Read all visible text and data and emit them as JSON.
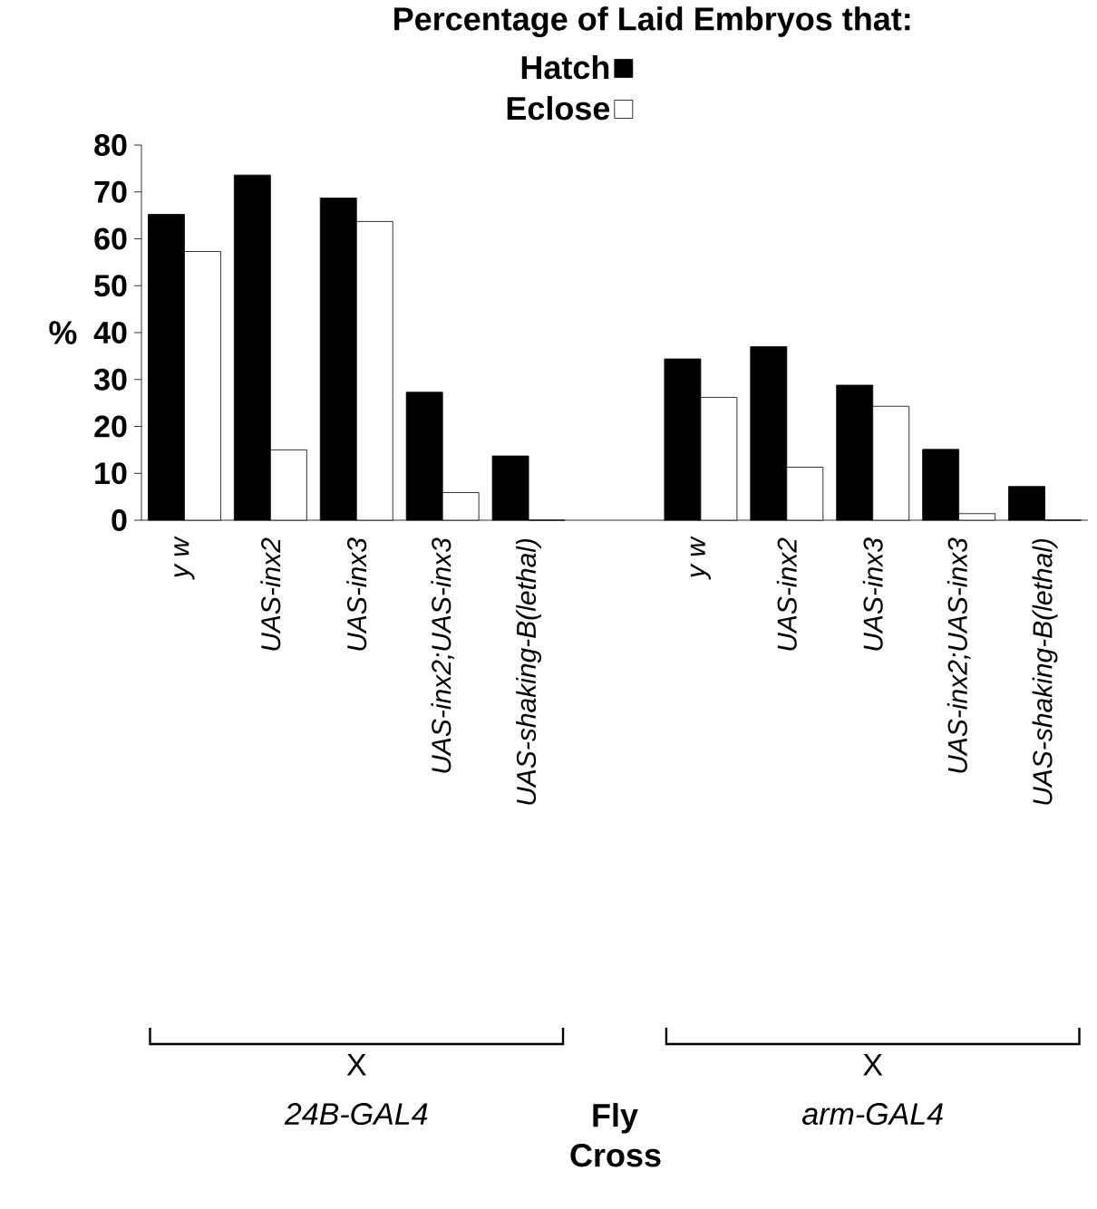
{
  "chart_data": {
    "type": "bar",
    "title": "Percentage of Laid Embryos that:",
    "categories": [
      "y w",
      "UAS-inx2",
      "UAS-inx3",
      "UAS-inx2;UAS-inx3",
      "UAS-shaking-B(lethal)",
      null,
      "y w",
      "UAS-inx2",
      "UAS-inx3",
      "UAS-inx2;UAS-inx3",
      "UAS-shaking-B(lethal)"
    ],
    "series": [
      {
        "name": "Hatch",
        "color": "#000000",
        "values": [
          65.2,
          73.6,
          68.7,
          27.3,
          13.7,
          null,
          34.4,
          37.0,
          28.8,
          15.1,
          7.2
        ]
      },
      {
        "name": "Eclose",
        "color": "#ffffff",
        "values": [
          57.3,
          15.0,
          63.7,
          5.9,
          0,
          null,
          26.2,
          11.3,
          24.3,
          1.4,
          0
        ]
      }
    ],
    "ylabel": "%",
    "ylim": [
      0,
      80
    ],
    "yticks": [
      0,
      10,
      20,
      30,
      40,
      50,
      60,
      70,
      80
    ],
    "legend": "top",
    "annotations": [
      "X",
      "24B-GAL4",
      "X",
      "arm-GAL4",
      "Fly Cross"
    ]
  }
}
